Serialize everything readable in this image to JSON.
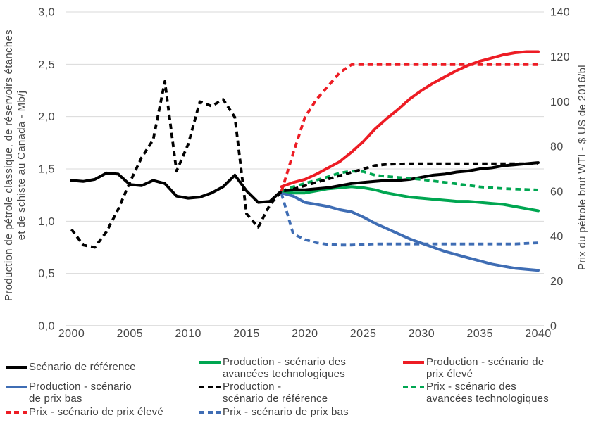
{
  "figure": {
    "background": "#ffffff",
    "text_color": "#474747",
    "gridline_color": "#d9d9d9",
    "axis_line_color": "#c0c0c0"
  },
  "chart_data": {
    "type": "line",
    "title": "",
    "grid": "horizontal",
    "x_axis": {
      "range": [
        2000,
        2040
      ],
      "tick_labels": [
        "2000",
        "2005",
        "2010",
        "2015",
        "2020",
        "2025",
        "2030",
        "2035",
        "2040"
      ],
      "tick_years": [
        2000,
        2005,
        2010,
        2015,
        2020,
        2025,
        2030,
        2035,
        2040
      ]
    },
    "y_axis_left": {
      "label": "Production de pétrole classique, de réservoirs étanches\net de schiste au Canada - Mb/j",
      "range": [
        0,
        3
      ],
      "tick_labels": [
        "3,0",
        "2,5",
        "2,0",
        "1,5",
        "1,0",
        "0,5",
        "0,0"
      ],
      "tick_values": [
        3.0,
        2.5,
        2.0,
        1.5,
        1.0,
        0.5,
        0.0
      ]
    },
    "y_axis_right": {
      "label": "Prix du pétrole brut WTI - $ US de 2016/bl",
      "range": [
        0,
        140
      ],
      "tick_labels": [
        "140",
        "120",
        "100",
        "80",
        "60",
        "40",
        "20",
        "0"
      ],
      "tick_values": [
        140,
        120,
        100,
        80,
        60,
        40,
        20,
        0
      ]
    },
    "series": [
      {
        "id": "price-low",
        "name": "Prix - scénario de prix bas",
        "axis": "right",
        "unit": "$US2016/bl",
        "color": "#3f6db4",
        "line_style": "dashed",
        "start_year": 2018,
        "values": [
          59,
          41,
          38.5,
          37,
          36.3,
          36,
          36,
          36.3,
          36.5,
          36.5,
          36.5,
          36.5,
          36.5,
          36.5,
          36.5,
          36.5,
          36.5,
          36.5,
          36.5,
          36.5,
          36.5,
          36.8,
          37
        ]
      },
      {
        "id": "production-low",
        "name": "Production - scénario de prix bas",
        "axis": "left",
        "unit": "Mb/j",
        "color": "#3f6db4",
        "line_style": "solid",
        "start_year": 2018,
        "values": [
          1.27,
          1.24,
          1.18,
          1.16,
          1.14,
          1.11,
          1.09,
          1.04,
          0.98,
          0.93,
          0.88,
          0.83,
          0.79,
          0.75,
          0.71,
          0.68,
          0.65,
          0.62,
          0.59,
          0.57,
          0.55,
          0.54,
          0.53
        ]
      },
      {
        "id": "production-tech",
        "name": "Production - scénario des avancées technologiques",
        "axis": "left",
        "unit": "Mb/j",
        "color": "#00a651",
        "line_style": "solid",
        "start_year": 2018,
        "values": [
          1.29,
          1.27,
          1.27,
          1.29,
          1.31,
          1.32,
          1.33,
          1.32,
          1.3,
          1.27,
          1.25,
          1.23,
          1.22,
          1.21,
          1.2,
          1.19,
          1.19,
          1.18,
          1.17,
          1.16,
          1.14,
          1.12,
          1.1
        ]
      },
      {
        "id": "reference",
        "name": "Scénario de référence",
        "axis": "left",
        "unit": "Mb/j",
        "color": "#000000",
        "line_style": "solid",
        "start_year": 2000,
        "values": [
          1.39,
          1.38,
          1.4,
          1.46,
          1.45,
          1.35,
          1.34,
          1.39,
          1.36,
          1.24,
          1.22,
          1.23,
          1.27,
          1.33,
          1.44,
          1.29,
          1.18,
          1.19,
          1.29,
          1.3,
          1.3,
          1.31,
          1.32,
          1.34,
          1.36,
          1.37,
          1.38,
          1.39,
          1.39,
          1.4,
          1.42,
          1.44,
          1.45,
          1.47,
          1.48,
          1.5,
          1.51,
          1.53,
          1.54,
          1.55,
          1.56
        ]
      },
      {
        "id": "price-tech",
        "name": "Prix - scénario des avancées technologiques",
        "axis": "right",
        "unit": "$US2016/bl",
        "color": "#00a651",
        "line_style": "dashed",
        "start_year": 2018,
        "values": [
          60,
          62,
          63.5,
          65,
          66.5,
          68.2,
          69,
          68.8,
          67.2,
          66.6,
          66.2,
          65.8,
          65.3,
          64.6,
          64,
          63.3,
          62.7,
          62,
          61.6,
          61.2,
          61,
          60.8,
          60.6
        ]
      },
      {
        "id": "price-reference",
        "name": "Production - scénario de référence",
        "axis": "right",
        "unit": "$US2016/bl",
        "color": "#000000",
        "line_style": "dashed",
        "start_year": 2000,
        "values": [
          43,
          36,
          35,
          42,
          52,
          64,
          75,
          83,
          109,
          69,
          81,
          100,
          98,
          101,
          93,
          50,
          44,
          54,
          60,
          61,
          62.5,
          64,
          65.5,
          67,
          68.5,
          70,
          71.5,
          72,
          72.2,
          72.3,
          72.3,
          72.3,
          72.3,
          72.3,
          72.3,
          72.3,
          72.3,
          72.3,
          72.3,
          72.3,
          72.3
        ]
      },
      {
        "id": "production-high",
        "name": "Production - scénario de prix élevé",
        "axis": "left",
        "unit": "Mb/j",
        "color": "#ed1c24",
        "line_style": "solid",
        "start_year": 2018,
        "values": [
          1.33,
          1.37,
          1.4,
          1.45,
          1.51,
          1.57,
          1.66,
          1.76,
          1.88,
          1.98,
          2.07,
          2.17,
          2.25,
          2.32,
          2.38,
          2.44,
          2.49,
          2.53,
          2.56,
          2.59,
          2.61,
          2.62,
          2.62
        ]
      },
      {
        "id": "price-high",
        "name": "Prix - scénario de prix élevé",
        "axis": "right",
        "unit": "$US2016/bl",
        "color": "#ed1c24",
        "line_style": "dashed",
        "start_year": 2018,
        "values": [
          60,
          77,
          93,
          101,
          107,
          113,
          116.5,
          116.5,
          116.5,
          116.5,
          116.5,
          116.5,
          116.5,
          116.5,
          116.5,
          116.5,
          116.5,
          116.5,
          116.5,
          116.5,
          116.5,
          116.5,
          116.5
        ]
      }
    ]
  },
  "legend": {
    "columns": [
      {
        "items": [
          {
            "label": "Scénario de référence",
            "color": "#000000",
            "line_style": "solid"
          },
          {
            "label": "Production - scénario\nde prix bas",
            "color": "#3f6db4",
            "line_style": "solid"
          },
          {
            "label": "Prix - scénario de prix élevé",
            "color": "#ed1c24",
            "line_style": "dashed"
          }
        ]
      },
      {
        "items": [
          {
            "label": "Production - scénario des\navancées technologiques",
            "color": "#00a651",
            "line_style": "solid"
          },
          {
            "label": "Production -\nscénario de référence",
            "color": "#000000",
            "line_style": "dashed"
          },
          {
            "label": "Prix - scénario de prix bas",
            "color": "#3f6db4",
            "line_style": "dashed"
          }
        ]
      },
      {
        "items": [
          {
            "label": "Production - scénario de\nprix élevé",
            "color": "#ed1c24",
            "line_style": "solid"
          },
          {
            "label": "Prix - scénario des\navancées technologiques",
            "color": "#00a651",
            "line_style": "dashed"
          }
        ]
      }
    ]
  }
}
